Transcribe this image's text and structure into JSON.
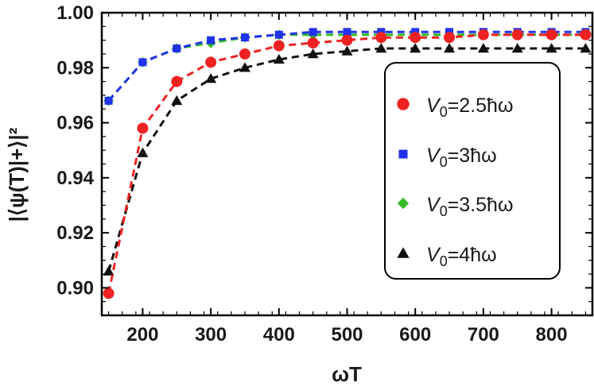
{
  "chart_data": {
    "type": "line",
    "xlabel": "ωT",
    "ylabel": "|⟨ψ(T)|+⟩|²",
    "xlim": [
      140,
      860
    ],
    "ylim": [
      0.89,
      1.0
    ],
    "xticks": [
      200,
      300,
      400,
      500,
      600,
      700,
      800
    ],
    "yticks": [
      0.9,
      0.92,
      0.94,
      0.96,
      0.98,
      1.0
    ],
    "ytick_labels": [
      "0.90",
      "0.92",
      "0.94",
      "0.96",
      "0.98",
      "1.00"
    ],
    "xtick_labels": [
      "200",
      "300",
      "400",
      "500",
      "600",
      "700",
      "800"
    ],
    "grid": false,
    "legend_position": "right",
    "x": [
      150,
      200,
      250,
      300,
      350,
      400,
      450,
      500,
      550,
      600,
      650,
      700,
      750,
      800,
      850
    ],
    "series": [
      {
        "name": "V0=2.5ħω",
        "legend_main": "V",
        "legend_sub": "0",
        "legend_rest": "=2.5ħω",
        "color": "#ee2222",
        "marker": "circle",
        "values": [
          0.898,
          0.958,
          0.975,
          0.982,
          0.985,
          0.988,
          0.989,
          0.99,
          0.991,
          0.991,
          0.991,
          0.992,
          0.992,
          0.992,
          0.992
        ]
      },
      {
        "name": "V0=3ħω",
        "legend_main": "V",
        "legend_sub": "0",
        "legend_rest": "=3ħω",
        "color": "#2233ee",
        "marker": "square",
        "values": [
          0.968,
          0.982,
          0.987,
          0.99,
          0.991,
          0.992,
          0.993,
          0.993,
          0.993,
          0.993,
          0.993,
          0.993,
          0.993,
          0.993,
          0.993
        ]
      },
      {
        "name": "V0=3.5ħω",
        "legend_main": "V",
        "legend_sub": "0",
        "legend_rest": "=3.5ħω",
        "color": "#33bb22",
        "marker": "diamond",
        "values": [
          0.968,
          0.982,
          0.987,
          0.989,
          0.991,
          0.992,
          0.992,
          0.992,
          0.992,
          0.992,
          0.992,
          0.992,
          0.992,
          0.992,
          0.992
        ]
      },
      {
        "name": "V0=4ħω",
        "legend_main": "V",
        "legend_sub": "0",
        "legend_rest": "=4ħω",
        "color": "#111111",
        "marker": "triangle",
        "values": [
          0.906,
          0.949,
          0.968,
          0.976,
          0.98,
          0.983,
          0.985,
          0.986,
          0.987,
          0.987,
          0.987,
          0.987,
          0.987,
          0.987,
          0.987
        ]
      }
    ]
  }
}
